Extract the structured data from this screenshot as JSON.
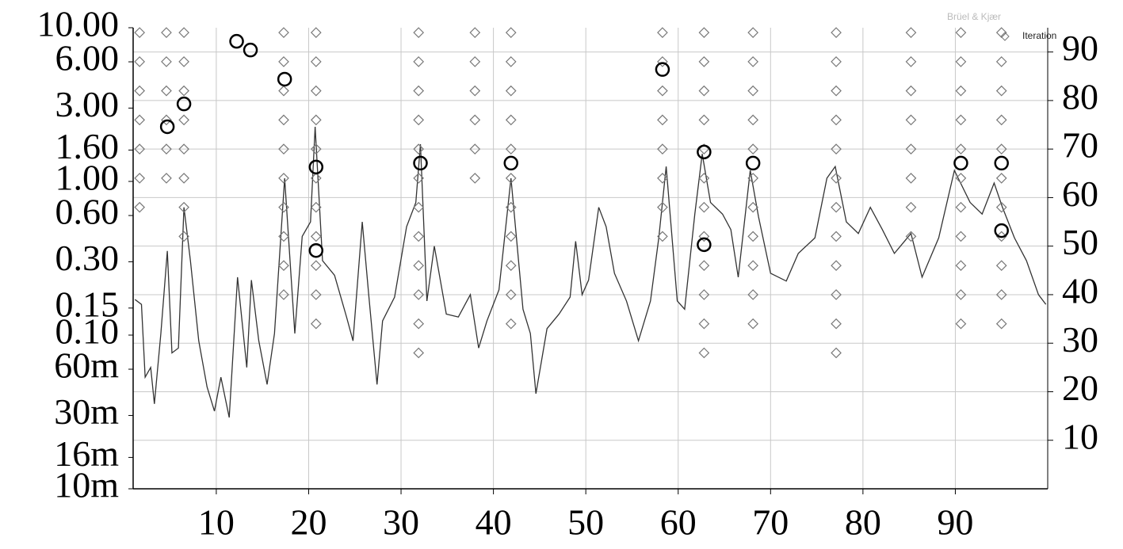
{
  "chart_data": {
    "type": "combo",
    "brand": "Brüel & Kjær",
    "legend": "upper right",
    "grid": true,
    "xlim": [
      1,
      100
    ],
    "xticks": [
      10,
      20,
      30,
      40,
      50,
      60,
      70,
      80,
      90
    ],
    "ylim": [
      0.01,
      10
    ],
    "log_y": true,
    "yticks": [
      {
        "value": 10,
        "label": "10.00"
      },
      {
        "value": 6,
        "label": "6.00"
      },
      {
        "value": 3,
        "label": "3.00"
      },
      {
        "value": 1.6,
        "label": "1.60"
      },
      {
        "value": 1,
        "label": "1.00"
      },
      {
        "value": 0.6,
        "label": "0.60"
      },
      {
        "value": 0.3,
        "label": "0.30"
      },
      {
        "value": 0.15,
        "label": "0.15"
      },
      {
        "value": 0.1,
        "label": "0.10"
      },
      {
        "value": 0.06,
        "label": "60m"
      },
      {
        "value": 0.03,
        "label": "30m"
      },
      {
        "value": 0.016,
        "label": "16m"
      },
      {
        "value": 0.01,
        "label": "10m"
      }
    ],
    "y2lim": [
      0,
      95
    ],
    "y2ticks": [
      10,
      20,
      30,
      40,
      50,
      60,
      70,
      80,
      90
    ],
    "series": [
      {
        "type": "line",
        "axis": "y2",
        "color": "#333333",
        "x": [
          1.2,
          1.9,
          2.3,
          2.9,
          3.3,
          4.0,
          4.7,
          5.2,
          5.9,
          6.5,
          7.2,
          8.1,
          9.0,
          9.8,
          10.5,
          11.4,
          12.3,
          13.3,
          13.8,
          14.6,
          15.5,
          16.3,
          17.4,
          18.5,
          19.3,
          20.2,
          20.7,
          21.5,
          22.8,
          24.1,
          24.8,
          25.8,
          26.5,
          27.4,
          28.0,
          29.3,
          30.6,
          31.6,
          32.1,
          32.8,
          33.6,
          34.9,
          36.2,
          37.5,
          38.4,
          39.3,
          40.6,
          41.9,
          43.2,
          44.0,
          44.6,
          45.8,
          47.1,
          48.3,
          48.9,
          49.6,
          50.3,
          51.4,
          52.2,
          53.1,
          54.4,
          55.7,
          57.0,
          57.9,
          58.7,
          59.9,
          60.7,
          61.8,
          62.6,
          63.5,
          64.8,
          65.7,
          66.5,
          67.8,
          68.7,
          70.0,
          71.7,
          73.0,
          74.8,
          76.1,
          77.0,
          78.2,
          79.5,
          80.8,
          82.1,
          83.4,
          85.2,
          86.4,
          88.2,
          89.9,
          91.6,
          92.9,
          94.2,
          95.1,
          96.4,
          97.7,
          99.0,
          99.8
        ],
        "values": [
          39,
          38,
          23,
          25,
          17.5,
          32,
          49,
          28,
          29,
          58,
          47,
          30.5,
          21,
          16,
          23,
          14.7,
          43.6,
          25,
          43,
          30.5,
          21.5,
          32,
          64,
          32,
          52,
          55,
          74.6,
          47,
          44,
          35.4,
          30.5,
          55,
          40,
          21.5,
          34.6,
          39.5,
          54,
          59,
          71,
          38.7,
          50,
          36,
          35.4,
          40,
          29,
          34.6,
          41,
          64,
          37,
          32,
          19.6,
          33,
          36,
          39.5,
          51,
          40,
          43,
          58,
          54,
          44.4,
          38.7,
          30.5,
          38.7,
          51.7,
          66.4,
          38.7,
          37,
          56.6,
          69,
          59,
          56.6,
          53.4,
          43.6,
          65.6,
          56,
          44.4,
          42.8,
          48.5,
          51.7,
          64,
          66.4,
          55,
          52.6,
          58,
          53.4,
          48.5,
          52.6,
          43.6,
          51.7,
          65.6,
          59,
          56.6,
          63,
          58,
          51.7,
          47,
          40,
          38
        ]
      },
      {
        "type": "stability",
        "name": "Iteration",
        "axis": "y2",
        "color": "#777777",
        "columns": [
          {
            "x": 1.7,
            "values": [
              94,
              88,
              82,
              76,
              70,
              64,
              58
            ]
          },
          {
            "x": 4.6,
            "values": [
              94,
              88,
              82,
              76,
              70,
              64
            ]
          },
          {
            "x": 6.5,
            "values": [
              94,
              88,
              82,
              76,
              70,
              64,
              58,
              52
            ]
          },
          {
            "x": 17.3,
            "values": [
              94,
              88,
              82,
              76,
              70,
              64,
              58,
              52,
              46,
              40
            ]
          },
          {
            "x": 20.8,
            "values": [
              94,
              88,
              82,
              76,
              70,
              64,
              58,
              52,
              46,
              40,
              34
            ]
          },
          {
            "x": 31.9,
            "values": [
              94,
              88,
              82,
              76,
              70,
              64,
              58,
              52,
              46,
              40,
              34,
              28
            ]
          },
          {
            "x": 38.0,
            "values": [
              94,
              88,
              82,
              76,
              70,
              64
            ]
          },
          {
            "x": 41.9,
            "values": [
              94,
              88,
              82,
              76,
              70,
              64,
              58,
              52,
              46,
              40,
              34
            ]
          },
          {
            "x": 58.3,
            "values": [
              94,
              88,
              82,
              76,
              70,
              64,
              58,
              52
            ]
          },
          {
            "x": 62.8,
            "values": [
              94,
              88,
              82,
              76,
              70,
              64,
              58,
              52,
              46,
              40,
              34,
              28
            ]
          },
          {
            "x": 68.1,
            "values": [
              94,
              88,
              82,
              76,
              70,
              64,
              58,
              52,
              46,
              40,
              34
            ]
          },
          {
            "x": 77.1,
            "values": [
              94,
              88,
              82,
              76,
              70,
              64,
              58,
              52,
              46,
              40,
              34,
              28
            ]
          },
          {
            "x": 85.2,
            "values": [
              94,
              88,
              82,
              76,
              70,
              64,
              58,
              52
            ]
          },
          {
            "x": 90.6,
            "values": [
              94,
              88,
              82,
              76,
              70,
              64,
              58,
              52,
              46,
              40,
              34
            ]
          },
          {
            "x": 95.0,
            "values": [
              94,
              88,
              82,
              76,
              70,
              64,
              58,
              52,
              46,
              40,
              34
            ]
          }
        ]
      },
      {
        "type": "scatter",
        "axis": "y2",
        "color": "#000000",
        "x": [
          4.7,
          6.5,
          12.2,
          13.7,
          17.4,
          20.8,
          20.8,
          32.1,
          41.9,
          58.3,
          62.8,
          62.8,
          68.1,
          90.6,
          95.0,
          95.0
        ],
        "values": [
          74.6,
          79.3,
          92.2,
          90.4,
          84.4,
          66.3,
          49.1,
          67.1,
          67.1,
          86.4,
          69.4,
          50.3,
          67.1,
          67.1,
          67.1,
          53.2
        ]
      }
    ]
  }
}
